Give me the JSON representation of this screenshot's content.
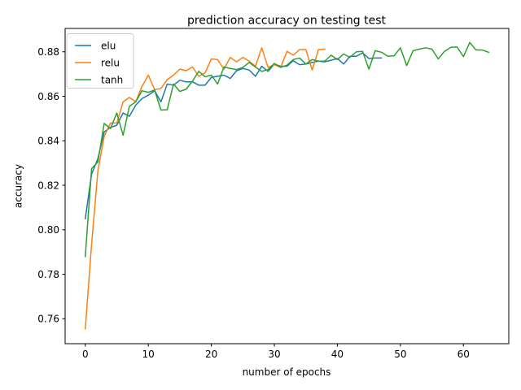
{
  "chart_data": {
    "type": "line",
    "title": "prediction accuracy on testing test",
    "xlabel": "number of epochs",
    "ylabel": "accuracy",
    "xlim": [
      -3.2,
      67.2
    ],
    "ylim": [
      0.7488,
      0.8905
    ],
    "xticks": [
      0,
      10,
      20,
      30,
      40,
      50,
      60
    ],
    "yticks": [
      0.76,
      0.78,
      0.8,
      0.82,
      0.84,
      0.86,
      0.88
    ],
    "ytick_labels": [
      "0.76",
      "0.78",
      "0.80",
      "0.82",
      "0.84",
      "0.86",
      "0.88"
    ],
    "grid": false,
    "legend_position": "top-left",
    "series": [
      {
        "name": "elu",
        "color": "#1f77b4",
        "values": [
          0.805,
          0.825,
          0.832,
          0.844,
          0.846,
          0.847,
          0.8525,
          0.851,
          0.856,
          0.859,
          0.8605,
          0.8625,
          0.8575,
          0.8655,
          0.865,
          0.8672,
          0.8665,
          0.8665,
          0.865,
          0.865,
          0.8685,
          0.869,
          0.8695,
          0.868,
          0.8715,
          0.8725,
          0.8718,
          0.869,
          0.8735,
          0.8712,
          0.8745,
          0.8735,
          0.8735,
          0.876,
          0.8742,
          0.8745,
          0.8752,
          0.8758,
          0.8755,
          0.8762,
          0.877,
          0.8745,
          0.878,
          0.878,
          0.8795,
          0.877,
          0.8772,
          0.8772
        ]
      },
      {
        "name": "relu",
        "color": "#ff7f0e",
        "values": [
          0.7555,
          0.7935,
          0.8265,
          0.842,
          0.848,
          0.848,
          0.8575,
          0.8595,
          0.8575,
          0.8645,
          0.8695,
          0.863,
          0.8635,
          0.8675,
          0.8695,
          0.8722,
          0.8715,
          0.8732,
          0.869,
          0.8705,
          0.8768,
          0.8765,
          0.8722,
          0.8775,
          0.8755,
          0.8775,
          0.8758,
          0.8735,
          0.8818,
          0.873,
          0.8742,
          0.873,
          0.8802,
          0.8785,
          0.881,
          0.881,
          0.8718,
          0.881,
          0.8812
        ]
      },
      {
        "name": "tanh",
        "color": "#2ca02c",
        "values": [
          0.788,
          0.8275,
          0.8305,
          0.8478,
          0.8455,
          0.8525,
          0.8425,
          0.8555,
          0.8575,
          0.8625,
          0.8618,
          0.8628,
          0.8538,
          0.854,
          0.8655,
          0.8622,
          0.8632,
          0.8668,
          0.8712,
          0.8688,
          0.8695,
          0.8655,
          0.8732,
          0.8725,
          0.872,
          0.873,
          0.8752,
          0.8732,
          0.8712,
          0.872,
          0.8748,
          0.873,
          0.874,
          0.8765,
          0.8772,
          0.8745,
          0.8765,
          0.8758,
          0.8758,
          0.8785,
          0.8765,
          0.879,
          0.8775,
          0.88,
          0.8802,
          0.8722,
          0.8805,
          0.8798,
          0.878,
          0.8782,
          0.8818,
          0.8738,
          0.8805,
          0.8812,
          0.8818,
          0.8812,
          0.8768,
          0.8802,
          0.882,
          0.8822,
          0.8778,
          0.8842,
          0.8808,
          0.8808,
          0.8798
        ]
      }
    ]
  }
}
